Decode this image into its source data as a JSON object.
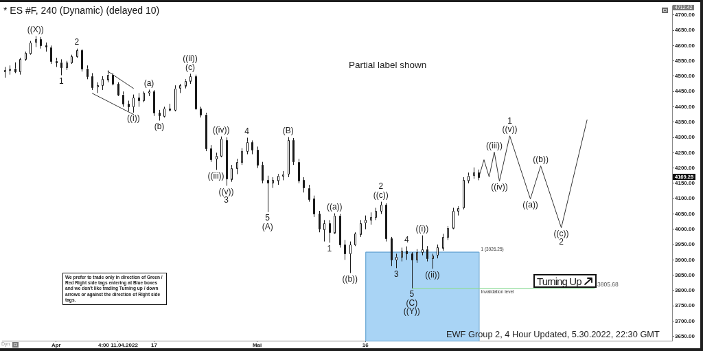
{
  "chart_data": {
    "type": "candlestick",
    "title": "* ES #F, 240 (Dynamic) (delayed 10)",
    "categories": [
      null,
      null,
      null,
      null,
      null,
      null,
      null,
      null,
      null,
      null,
      "Apr",
      null,
      null,
      null,
      null,
      null,
      null,
      null,
      null,
      null,
      null,
      null,
      "4:00 11.04.2022",
      null,
      null,
      null,
      null,
      null,
      null,
      "17",
      null,
      null,
      null,
      null,
      null,
      null,
      null,
      null,
      null,
      null,
      null,
      null,
      null,
      null,
      null,
      null,
      null,
      null,
      null,
      "Mai",
      null,
      null,
      null,
      null,
      null,
      null,
      null,
      null,
      null,
      null,
      null,
      null,
      null,
      null,
      null,
      null,
      null,
      null,
      null,
      null,
      "16",
      null,
      null,
      null,
      null,
      null,
      null,
      null,
      null,
      null,
      null,
      null,
      null,
      null,
      null,
      null,
      null,
      null,
      null,
      null,
      null,
      null,
      null,
      null,
      null,
      null,
      null,
      null,
      null,
      null,
      null,
      null,
      null,
      null,
      null,
      null,
      null,
      null,
      null,
      null,
      null,
      null,
      null,
      null,
      null,
      null,
      null,
      null,
      null,
      null,
      null,
      null,
      null,
      null,
      null,
      null,
      null,
      null,
      null,
      null
    ],
    "color": "#1a1a1a",
    "ohlc": [
      [
        4515,
        4530,
        4495,
        4520
      ],
      [
        4520,
        4535,
        4505,
        4525
      ],
      [
        4525,
        4545,
        4510,
        4515
      ],
      [
        4515,
        4560,
        4505,
        4555
      ],
      [
        4555,
        4580,
        4550,
        4575
      ],
      [
        4575,
        4615,
        4570,
        4610
      ],
      [
        4610,
        4631,
        4595,
        4620
      ],
      [
        4620,
        4628,
        4590,
        4600
      ],
      [
        4600,
        4610,
        4580,
        4595
      ],
      [
        4595,
        4600,
        4540,
        4550
      ],
      [
        4550,
        4560,
        4530,
        4545
      ],
      [
        4545,
        4555,
        4503,
        4530
      ],
      [
        4530,
        4550,
        4520,
        4545
      ],
      [
        4545,
        4570,
        4540,
        4565
      ],
      [
        4565,
        4590,
        4560,
        4585
      ],
      [
        4585,
        4588,
        4515,
        4525
      ],
      [
        4525,
        4535,
        4490,
        4500
      ],
      [
        4500,
        4510,
        4455,
        4465
      ],
      [
        4465,
        4480,
        4445,
        4470
      ],
      [
        4470,
        4500,
        4455,
        4490
      ],
      [
        4490,
        4519,
        4480,
        4505
      ],
      [
        4505,
        4510,
        4470,
        4475
      ],
      [
        4475,
        4480,
        4435,
        4440
      ],
      [
        4440,
        4450,
        4400,
        4410
      ],
      [
        4410,
        4420,
        4385,
        4400
      ],
      [
        4400,
        4440,
        4381,
        4430
      ],
      [
        4430,
        4445,
        4400,
        4420
      ],
      [
        4420,
        4450,
        4415,
        4445
      ],
      [
        4445,
        4456,
        4435,
        4450
      ],
      [
        4450,
        4455,
        4370,
        4380
      ],
      [
        4380,
        4390,
        4355,
        4370
      ],
      [
        4370,
        4400,
        4365,
        4395
      ],
      [
        4395,
        4410,
        4385,
        4390
      ],
      [
        4390,
        4470,
        4385,
        4460
      ],
      [
        4460,
        4475,
        4445,
        4470
      ],
      [
        4470,
        4490,
        4460,
        4485
      ],
      [
        4485,
        4508,
        4475,
        4500
      ],
      [
        4500,
        4505,
        4390,
        4395
      ],
      [
        4395,
        4400,
        4365,
        4375
      ],
      [
        4375,
        4380,
        4255,
        4265
      ],
      [
        4265,
        4275,
        4220,
        4230
      ],
      [
        4230,
        4250,
        4194,
        4240
      ],
      [
        4240,
        4303,
        4235,
        4295
      ],
      [
        4290,
        4300,
        4142,
        4165
      ],
      [
        4165,
        4210,
        4155,
        4200
      ],
      [
        4200,
        4230,
        4180,
        4220
      ],
      [
        4220,
        4265,
        4210,
        4255
      ],
      [
        4255,
        4299,
        4245,
        4285
      ],
      [
        4285,
        4290,
        4245,
        4260
      ],
      [
        4260,
        4270,
        4200,
        4210
      ],
      [
        4210,
        4220,
        4150,
        4160
      ],
      [
        4160,
        4175,
        4056,
        4150
      ],
      [
        4150,
        4170,
        4135,
        4160
      ],
      [
        4160,
        4180,
        4145,
        4175
      ],
      [
        4175,
        4190,
        4160,
        4180
      ],
      [
        4180,
        4301,
        4170,
        4290
      ],
      [
        4290,
        4298,
        4210,
        4220
      ],
      [
        4220,
        4230,
        4150,
        4160
      ],
      [
        4160,
        4170,
        4120,
        4135
      ],
      [
        4135,
        4145,
        4090,
        4100
      ],
      [
        4100,
        4110,
        4040,
        4050
      ],
      [
        4050,
        4060,
        3990,
        4000
      ],
      [
        4000,
        4030,
        3960,
        4020
      ],
      [
        4020,
        4030,
        3956,
        3990
      ],
      [
        3990,
        4052,
        3985,
        4045
      ],
      [
        4045,
        4050,
        3940,
        3950
      ],
      [
        3950,
        3965,
        3900,
        3920
      ],
      [
        3920,
        3960,
        3857,
        3950
      ],
      [
        3950,
        3990,
        3945,
        3985
      ],
      [
        3985,
        4030,
        3975,
        4020
      ],
      [
        4020,
        4045,
        4000,
        4030
      ],
      [
        4030,
        4055,
        4015,
        4040
      ],
      [
        4040,
        4070,
        4030,
        4060
      ],
      [
        4060,
        4090,
        4050,
        4080
      ],
      [
        4080,
        4085,
        3960,
        3970
      ],
      [
        3970,
        3975,
        3880,
        3900
      ],
      [
        3900,
        3920,
        3873,
        3910
      ],
      [
        3910,
        3940,
        3895,
        3930
      ],
      [
        3930,
        3944,
        3900,
        3920
      ],
      [
        3920,
        3925,
        3807,
        3900
      ],
      [
        3900,
        3935,
        3890,
        3925
      ],
      [
        3925,
        3980,
        3915,
        3935
      ],
      [
        3935,
        3945,
        3895,
        3905
      ],
      [
        3905,
        3920,
        3871,
        3915
      ],
      [
        3915,
        3950,
        3905,
        3940
      ],
      [
        3940,
        3985,
        3930,
        3975
      ],
      [
        3975,
        4010,
        3965,
        4005
      ],
      [
        4005,
        4070,
        4000,
        4060
      ],
      [
        4060,
        4075,
        4045,
        4070
      ],
      [
        4070,
        4170,
        4065,
        4160
      ],
      [
        4160,
        4185,
        4150,
        4175
      ],
      [
        4175,
        4202,
        4165,
        4185
      ],
      [
        4185,
        4195,
        4160,
        4169.25
      ],
      null,
      null,
      null,
      null,
      null,
      null,
      null,
      null,
      null,
      null,
      null,
      null,
      null,
      null,
      null,
      null,
      null,
      null,
      null,
      null,
      null,
      null,
      null,
      null,
      null,
      null,
      null,
      null,
      null,
      null,
      null,
      null,
      null,
      null,
      null,
      null,
      null
    ],
    "series": [
      {
        "type": "line",
        "color": "#333333",
        "values": [
          null,
          null,
          null,
          null,
          null,
          null,
          null,
          null,
          null,
          null,
          null,
          null,
          null,
          null,
          null,
          null,
          null,
          null,
          null,
          null,
          null,
          null,
          null,
          null,
          null,
          null,
          null,
          null,
          null,
          null,
          null,
          null,
          null,
          null,
          null,
          null,
          null,
          null,
          null,
          null,
          null,
          null,
          null,
          null,
          null,
          null,
          null,
          null,
          null,
          null,
          null,
          null,
          null,
          null,
          null,
          null,
          null,
          null,
          null,
          null,
          null,
          null,
          null,
          null,
          null,
          null,
          null,
          null,
          null,
          null,
          null,
          null,
          null,
          null,
          null,
          null,
          null,
          null,
          null,
          null,
          null,
          null,
          null,
          null,
          null,
          null,
          null,
          null,
          null,
          null,
          null,
          null,
          4169,
          4227,
          4171,
          4252,
          4157,
          null,
          4305,
          null,
          null,
          null,
          4099,
          null,
          4207,
          null,
          null,
          null,
          4005,
          null,
          null,
          null,
          null,
          4357,
          null,
          null,
          null,
          null,
          null,
          null,
          null,
          null,
          null,
          null,
          null,
          null,
          null,
          null,
          null,
          null
        ]
      },
      {
        "type": "line",
        "color": "#333333",
        "values": [
          null,
          null,
          null,
          null,
          null,
          null,
          null,
          null,
          null,
          null,
          null,
          null,
          null,
          null,
          null,
          null,
          null,
          null,
          null,
          null,
          4516,
          null,
          null,
          null,
          null,
          4460,
          null,
          null,
          null,
          null,
          null,
          null,
          null,
          null,
          null,
          null,
          null,
          null,
          null,
          null,
          null,
          null,
          null,
          null,
          null,
          null,
          null,
          null,
          null,
          null,
          null,
          null,
          null,
          null,
          null,
          null,
          null,
          null,
          null,
          null,
          null,
          null,
          null,
          null,
          null,
          null,
          null,
          null,
          null,
          null,
          null,
          null,
          null,
          null,
          null,
          null,
          null,
          null,
          null,
          null,
          null,
          null,
          null,
          null,
          null,
          null,
          null,
          null,
          null,
          null,
          null,
          null,
          null,
          null,
          null,
          null,
          null,
          null,
          null,
          null,
          null,
          null,
          null,
          null,
          null,
          null,
          null,
          null,
          null,
          null,
          null,
          null,
          null,
          null,
          null,
          null,
          null,
          null,
          null,
          null,
          null,
          null,
          null,
          null,
          null,
          null,
          null,
          null,
          null,
          null
        ]
      },
      {
        "type": "line",
        "color": "#333333",
        "values": [
          null,
          null,
          null,
          null,
          null,
          null,
          null,
          null,
          null,
          null,
          null,
          null,
          null,
          null,
          null,
          null,
          null,
          4444,
          null,
          null,
          null,
          null,
          null,
          null,
          null,
          4375,
          null,
          null,
          null,
          null,
          null,
          null,
          null,
          null,
          null,
          null,
          null,
          null,
          null,
          null,
          null,
          null,
          null,
          null,
          null,
          null,
          null,
          null,
          null,
          null,
          null,
          null,
          null,
          null,
          null,
          null,
          null,
          null,
          null,
          null,
          null,
          null,
          null,
          null,
          null,
          null,
          null,
          null,
          null,
          null,
          null,
          null,
          null,
          null,
          null,
          null,
          null,
          null,
          null,
          null,
          null,
          null,
          null,
          null,
          null,
          null,
          null,
          null,
          null,
          null,
          null,
          null,
          null,
          null,
          null,
          null,
          null,
          null,
          null,
          null,
          null,
          null,
          null,
          null,
          null,
          null,
          null,
          null,
          null,
          null,
          null,
          null,
          null,
          null,
          null,
          null,
          null,
          null,
          null,
          null,
          null,
          null,
          null,
          null,
          null,
          null,
          null,
          null,
          null,
          null
        ]
      }
    ],
    "ylim": [
      3636,
      4729
    ],
    "yticks": [
      {
        "value": 3650,
        "label": "3650.00"
      },
      {
        "value": 3700,
        "label": "3700.00"
      },
      {
        "value": 3750,
        "label": "3750.00"
      },
      {
        "value": 3800,
        "label": "3800.00"
      },
      {
        "value": 3850,
        "label": "3850.00"
      },
      {
        "value": 3900,
        "label": "3900.00"
      },
      {
        "value": 3950,
        "label": "3950.00"
      },
      {
        "value": 4000,
        "label": "4000.00"
      },
      {
        "value": 4050,
        "label": "4050.00"
      },
      {
        "value": 4100,
        "label": "4100.00"
      },
      {
        "value": 4150,
        "label": "4150.00"
      },
      {
        "value": 4200,
        "label": "4200.00"
      },
      {
        "value": 4250,
        "label": "4250.00"
      },
      {
        "value": 4300,
        "label": "4300.00"
      },
      {
        "value": 4350,
        "label": "4350.00"
      },
      {
        "value": 4400,
        "label": "4400.00"
      },
      {
        "value": 4450,
        "label": "4450.00"
      },
      {
        "value": 4500,
        "label": "4500.00"
      },
      {
        "value": 4550,
        "label": "4550.00"
      },
      {
        "value": 4600,
        "label": "4600.00"
      },
      {
        "value": 4650,
        "label": "4650.00"
      },
      {
        "value": 4700,
        "label": "4700.00"
      }
    ],
    "bands": [
      {
        "axis": "y",
        "from": 3636,
        "to": 3926.25,
        "label": "1 (3926.25)",
        "color": "#a9d4f5"
      }
    ],
    "ref_lines": [
      {
        "axis": "y",
        "value": 3805.68,
        "label": "Invalidation level",
        "color": "#8fdc9a"
      }
    ],
    "annotations": [
      {
        "text": "((X))",
        "y": 4631
      },
      {
        "text": "1",
        "y": 4503
      },
      {
        "text": "2",
        "y": 4590
      },
      {
        "text": "((i))",
        "y": 4381
      },
      {
        "text": "(a)",
        "y": 4456
      },
      {
        "text": "(b)",
        "y": 4355
      },
      {
        "text": "((ii))\n(c)",
        "y": 4508
      },
      {
        "text": "((iii))",
        "y": 4194
      },
      {
        "text": "((iv))",
        "y": 4303
      },
      {
        "text": "((v))\n3",
        "y": 4142
      },
      {
        "text": "4",
        "y": 4299
      },
      {
        "text": "5\n(A)",
        "y": 4056
      },
      {
        "text": "(B)",
        "y": 4301
      },
      {
        "text": "1",
        "y": 3956
      },
      {
        "text": "((a))",
        "y": 4052
      },
      {
        "text": "((b))",
        "y": 3857
      },
      {
        "text": "2\n((c))",
        "y": 4090
      },
      {
        "text": "3",
        "y": 3873
      },
      {
        "text": "4",
        "y": 3944
      },
      {
        "text": "5\n(C)\n((Y))",
        "y": 3807
      },
      {
        "text": "((i))",
        "y": 3980
      },
      {
        "text": "((ii))",
        "y": 3871
      },
      {
        "text": "((iii))",
        "y": 4252
      },
      {
        "text": "((iv))",
        "y": 4157
      },
      {
        "text": "1\n((v))",
        "y": 4305
      },
      {
        "text": "((a))",
        "y": 4099
      },
      {
        "text": "((b))",
        "y": 4207
      },
      {
        "text": "((c))\n2",
        "y": 4005
      },
      "4712.42",
      "Partial label shown",
      "4169.25",
      "We prefer to trade only in direction of Green / Red Right side tags entering at Blue boxes and we don't like trading Turning up / down arrows or against the direction of Right side tags.",
      "Turning Up",
      "3805.68",
      "EWF Group 2, 4 Hour Updated, 5.30.2022, 22:30 GMT",
      "Dyn"
    ]
  }
}
